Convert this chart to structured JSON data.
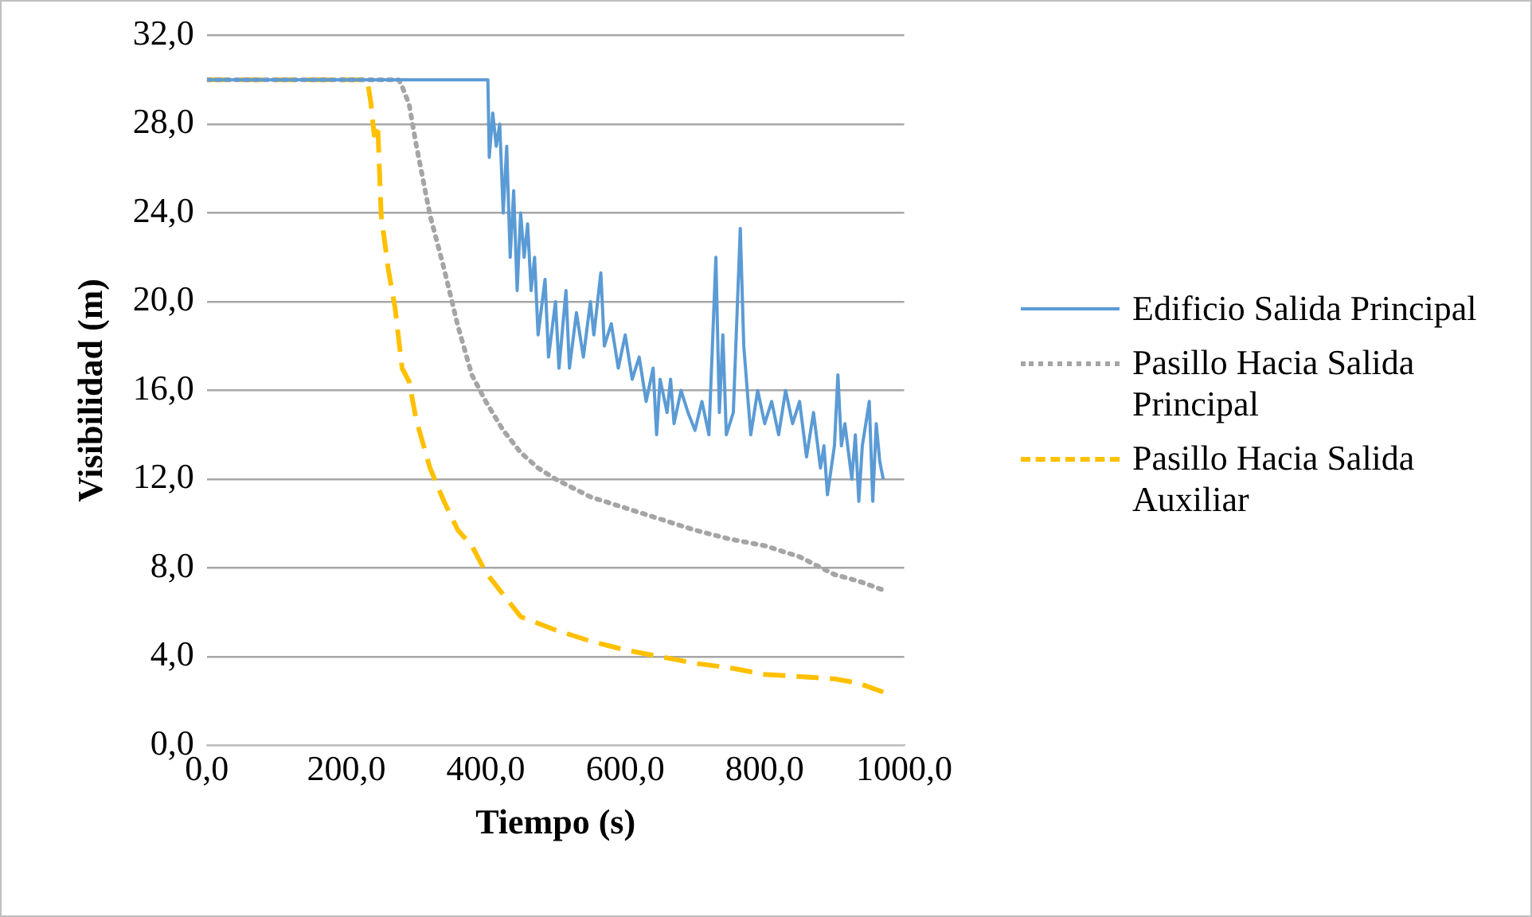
{
  "chart_data": {
    "type": "line",
    "xlabel": "Tiempo (s)",
    "ylabel": "Visibilidad (m)",
    "xlim": [
      0,
      1000
    ],
    "xticks": [
      {
        "value": 0,
        "label": "0,0"
      },
      {
        "value": 200,
        "label": "200,0"
      },
      {
        "value": 400,
        "label": "400,0"
      },
      {
        "value": 600,
        "label": "600,0"
      },
      {
        "value": 800,
        "label": "800,0"
      },
      {
        "value": 1000,
        "label": "1000,0"
      }
    ],
    "ylim": [
      0,
      32
    ],
    "yticks": [
      {
        "value": 0,
        "label": "0,0"
      },
      {
        "value": 4,
        "label": "4,0"
      },
      {
        "value": 8,
        "label": "8,0"
      },
      {
        "value": 12,
        "label": "12,0"
      },
      {
        "value": 16,
        "label": "16,0"
      },
      {
        "value": 20,
        "label": "20,0"
      },
      {
        "value": 24,
        "label": "24,0"
      },
      {
        "value": 28,
        "label": "28,0"
      },
      {
        "value": 32,
        "label": "32,0"
      }
    ],
    "grid": "y",
    "legend": "right",
    "marker": "none",
    "series": [
      {
        "name": "Edificio Salida Principal",
        "color": "#5b9bd5",
        "line_style": "solid",
        "x": [
          0,
          403,
          405,
          410,
          415,
          420,
          425,
          430,
          435,
          440,
          445,
          450,
          455,
          460,
          465,
          470,
          475,
          485,
          490,
          500,
          505,
          515,
          520,
          530,
          540,
          550,
          555,
          565,
          570,
          580,
          590,
          600,
          610,
          620,
          630,
          640,
          645,
          650,
          660,
          665,
          670,
          680,
          690,
          700,
          710,
          720,
          730,
          735,
          740,
          745,
          755,
          765,
          770,
          780,
          790,
          800,
          810,
          820,
          830,
          840,
          850,
          860,
          870,
          880,
          885,
          890,
          900,
          905,
          910,
          915,
          925,
          930,
          935,
          940,
          950,
          955,
          960,
          965,
          970
        ],
        "values": [
          30,
          30,
          26.5,
          28.5,
          27,
          28,
          24,
          27,
          22,
          25,
          20.5,
          24,
          22,
          23.5,
          20.5,
          22,
          18.5,
          21,
          17.5,
          20,
          17,
          20.5,
          17,
          19.5,
          17.5,
          20,
          18.5,
          21.3,
          18,
          19,
          17,
          18.5,
          16.5,
          17.5,
          15.5,
          17,
          14,
          16.5,
          15,
          16.5,
          14.5,
          16,
          15,
          14.2,
          15.5,
          14,
          22,
          15,
          18.5,
          14,
          15,
          23.3,
          18,
          14,
          16,
          14.5,
          15.5,
          14,
          16,
          14.5,
          15.5,
          13,
          15,
          12.5,
          13.5,
          11.3,
          13.5,
          16.7,
          13.5,
          14.5,
          12,
          14,
          11,
          13.5,
          15.5,
          11,
          14.5,
          12.8,
          12
        ]
      },
      {
        "name": "Pasillo Hacia Salida Principal",
        "color": "#a5a5a5",
        "line_style": "dotted",
        "x": [
          0,
          275,
          280,
          290,
          300,
          320,
          340,
          360,
          380,
          400,
          425,
          450,
          475,
          500,
          550,
          600,
          650,
          700,
          750,
          800,
          850,
          900,
          935,
          970
        ],
        "values": [
          30,
          30,
          29.7,
          28.9,
          27.1,
          23.9,
          21.5,
          18.9,
          16.7,
          15.5,
          14.2,
          13.2,
          12.5,
          12,
          11.2,
          10.7,
          10.2,
          9.7,
          9.3,
          9,
          8.5,
          7.7,
          7.4,
          7
        ]
      },
      {
        "name": "Pasillo Hacia Salida Auxiliar",
        "color": "#ffc000",
        "line_style": "dashed",
        "x": [
          0,
          230,
          235,
          240,
          245,
          250,
          260,
          270,
          280,
          290,
          300,
          320,
          340,
          360,
          380,
          400,
          425,
          450,
          500,
          550,
          600,
          650,
          700,
          750,
          800,
          850,
          900,
          935,
          970
        ],
        "values": [
          30,
          30,
          29,
          27.5,
          28,
          23.9,
          21.5,
          19.7,
          17,
          16.4,
          14.7,
          12.5,
          11,
          9.7,
          9,
          7.8,
          6.8,
          5.8,
          5.2,
          4.7,
          4.3,
          4,
          3.7,
          3.5,
          3.2,
          3.1,
          3,
          2.8,
          2.4
        ]
      }
    ]
  }
}
